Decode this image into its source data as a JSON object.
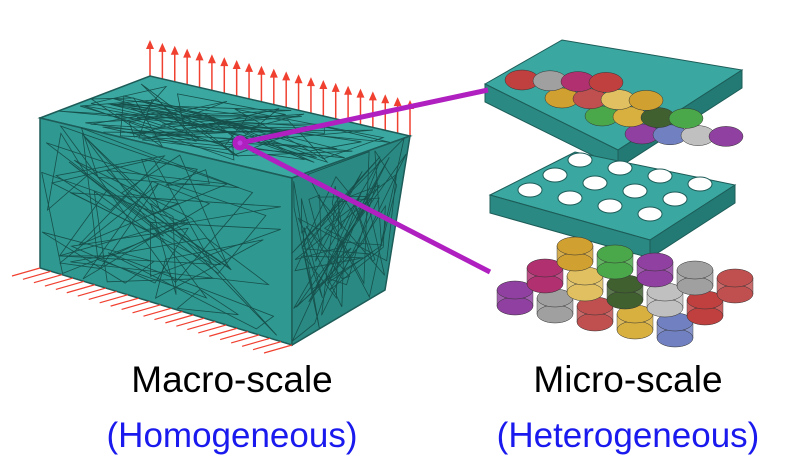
{
  "macro": {
    "label": "Macro-scale",
    "sublabel": "(Homogeneous)"
  },
  "micro": {
    "label": "Micro-scale",
    "sublabel": "(Heterogeneous)"
  }
}
